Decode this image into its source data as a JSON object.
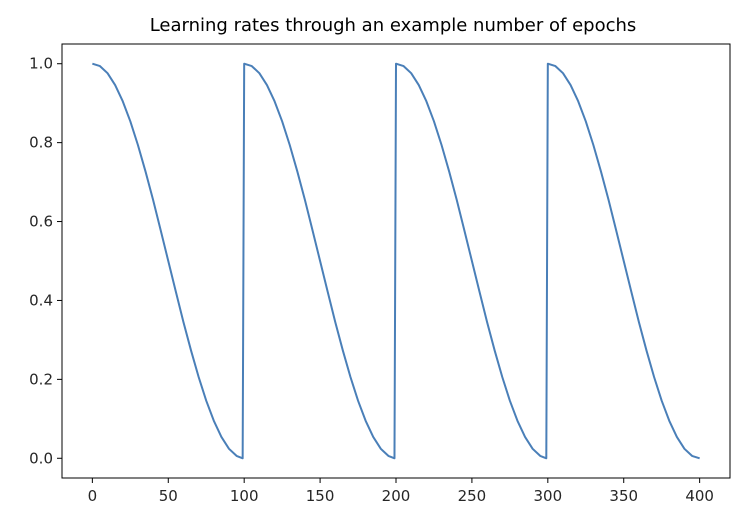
{
  "chart_data": {
    "type": "line",
    "title": "Learning rates through an example number of epochs",
    "xlabel": "",
    "ylabel": "",
    "xlim": [
      -20,
      420
    ],
    "ylim": [
      -0.05,
      1.05
    ],
    "x_ticks": [
      0,
      50,
      100,
      150,
      200,
      250,
      300,
      350,
      400
    ],
    "x_tick_labels": [
      "0",
      "50",
      "100",
      "150",
      "200",
      "250",
      "300",
      "350",
      "400"
    ],
    "y_ticks": [
      0.0,
      0.2,
      0.4,
      0.6,
      0.8,
      1.0
    ],
    "y_tick_labels": [
      "0.0",
      "0.2",
      "0.4",
      "0.6",
      "0.8",
      "1.0"
    ],
    "grid": false,
    "legend": "none",
    "series": [
      {
        "color": "#4a7fb8",
        "x": [
          0,
          5,
          10,
          15,
          20,
          25,
          30,
          35,
          40,
          45,
          50,
          55,
          60,
          65,
          70,
          75,
          80,
          85,
          90,
          95,
          99,
          100,
          105,
          110,
          115,
          120,
          125,
          130,
          135,
          140,
          145,
          150,
          155,
          160,
          165,
          170,
          175,
          180,
          185,
          190,
          195,
          199,
          200,
          205,
          210,
          215,
          220,
          225,
          230,
          235,
          240,
          245,
          250,
          255,
          260,
          265,
          270,
          275,
          280,
          285,
          290,
          295,
          299,
          300,
          305,
          310,
          315,
          320,
          325,
          330,
          335,
          340,
          345,
          350,
          355,
          360,
          365,
          370,
          375,
          380,
          385,
          390,
          395,
          400
        ],
        "y": [
          1.0,
          0.994,
          0.976,
          0.946,
          0.905,
          0.854,
          0.794,
          0.727,
          0.655,
          0.578,
          0.5,
          0.422,
          0.345,
          0.273,
          0.206,
          0.146,
          0.095,
          0.054,
          0.024,
          0.006,
          0.0,
          1.0,
          0.994,
          0.976,
          0.946,
          0.905,
          0.854,
          0.794,
          0.727,
          0.655,
          0.578,
          0.5,
          0.422,
          0.345,
          0.273,
          0.206,
          0.146,
          0.095,
          0.054,
          0.024,
          0.006,
          0.0,
          1.0,
          0.994,
          0.976,
          0.946,
          0.905,
          0.854,
          0.794,
          0.727,
          0.655,
          0.578,
          0.5,
          0.422,
          0.345,
          0.273,
          0.206,
          0.146,
          0.095,
          0.054,
          0.024,
          0.006,
          0.0,
          1.0,
          0.994,
          0.976,
          0.946,
          0.905,
          0.854,
          0.794,
          0.727,
          0.655,
          0.578,
          0.5,
          0.422,
          0.345,
          0.273,
          0.206,
          0.146,
          0.095,
          0.054,
          0.024,
          0.006,
          0.0
        ]
      }
    ]
  }
}
